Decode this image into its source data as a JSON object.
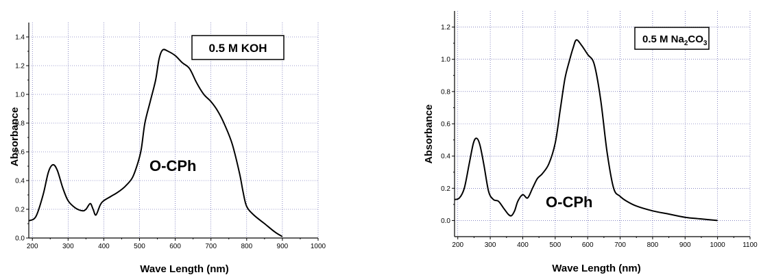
{
  "chart_data": [
    {
      "type": "line",
      "xlabel": "Wave Length (nm)",
      "ylabel": "Absorbance",
      "xlim": [
        190,
        1000
      ],
      "ylim": [
        0.0,
        1.5
      ],
      "xticks": [
        200,
        300,
        400,
        500,
        600,
        700,
        800,
        900,
        1000
      ],
      "yticks": [
        0.0,
        0.2,
        0.4,
        0.6,
        0.8,
        1.0,
        1.2,
        1.4
      ],
      "grid": true,
      "legend_box_text": "0.5 M KOH",
      "annotation": "O-CPh",
      "series": [
        {
          "x": [
            190,
            210,
            230,
            245,
            258,
            270,
            285,
            300,
            320,
            340,
            350,
            362,
            370,
            378,
            390,
            400,
            420,
            440,
            460,
            480,
            495,
            505,
            515,
            530,
            545,
            555,
            565,
            580,
            600,
            620,
            640,
            660,
            680,
            700,
            720,
            740,
            760,
            780,
            790,
            800,
            820,
            850,
            880,
            900
          ],
          "y": [
            0.12,
            0.15,
            0.3,
            0.46,
            0.51,
            0.47,
            0.35,
            0.26,
            0.21,
            0.19,
            0.2,
            0.24,
            0.2,
            0.16,
            0.23,
            0.26,
            0.29,
            0.32,
            0.36,
            0.42,
            0.52,
            0.62,
            0.8,
            0.95,
            1.1,
            1.25,
            1.31,
            1.3,
            1.27,
            1.22,
            1.18,
            1.08,
            1.0,
            0.95,
            0.88,
            0.78,
            0.65,
            0.45,
            0.32,
            0.22,
            0.16,
            0.1,
            0.04,
            0.01
          ]
        }
      ]
    },
    {
      "type": "line",
      "xlabel": "Wave Length (nm)",
      "ylabel": "Absorbance",
      "xlim": [
        190,
        1100
      ],
      "ylim": [
        -0.1,
        1.3
      ],
      "xticks": [
        200,
        300,
        400,
        500,
        600,
        700,
        800,
        900,
        1000,
        1100
      ],
      "yticks": [
        0.0,
        0.2,
        0.4,
        0.6,
        0.8,
        1.0,
        1.2
      ],
      "grid": true,
      "legend_box_text_main": "0.5 M Na",
      "legend_box_sub1": "2",
      "legend_box_mid": "CO",
      "legend_box_sub2": "3",
      "annotation": "O-CPh",
      "series": [
        {
          "x": [
            190,
            205,
            220,
            235,
            248,
            258,
            268,
            280,
            295,
            310,
            325,
            340,
            355,
            365,
            375,
            385,
            400,
            415,
            430,
            445,
            460,
            480,
            500,
            515,
            530,
            545,
            555,
            565,
            580,
            600,
            620,
            640,
            660,
            680,
            700,
            720,
            750,
            800,
            850,
            900,
            950,
            1000
          ],
          "y": [
            0.13,
            0.14,
            0.2,
            0.35,
            0.48,
            0.51,
            0.47,
            0.35,
            0.18,
            0.13,
            0.12,
            0.08,
            0.04,
            0.03,
            0.06,
            0.12,
            0.16,
            0.14,
            0.2,
            0.26,
            0.29,
            0.35,
            0.48,
            0.68,
            0.88,
            1.0,
            1.07,
            1.12,
            1.09,
            1.03,
            0.97,
            0.75,
            0.42,
            0.2,
            0.15,
            0.12,
            0.09,
            0.06,
            0.04,
            0.02,
            0.01,
            0.0
          ]
        }
      ]
    }
  ]
}
